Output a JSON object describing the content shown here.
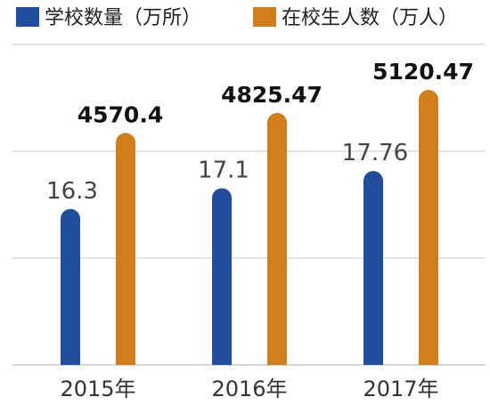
{
  "chart_data": {
    "type": "bar",
    "categories": [
      "2015年",
      "2016年",
      "2017年"
    ],
    "series": [
      {
        "name": "学校数量（万所）",
        "color": "#1f4e9e",
        "values": [
          16.3,
          17.1,
          17.76
        ],
        "labels": [
          "16.3",
          "17.1",
          "17.76"
        ]
      },
      {
        "name": "在校生人数（万人）",
        "color": "#d07f1a",
        "values": [
          4570.4,
          4825.47,
          5120.47
        ],
        "labels": [
          "4570.4",
          "4825.47",
          "5120.47"
        ]
      }
    ],
    "legend_position": "top",
    "grid": true,
    "gridline_color": "#c8c8c8"
  }
}
